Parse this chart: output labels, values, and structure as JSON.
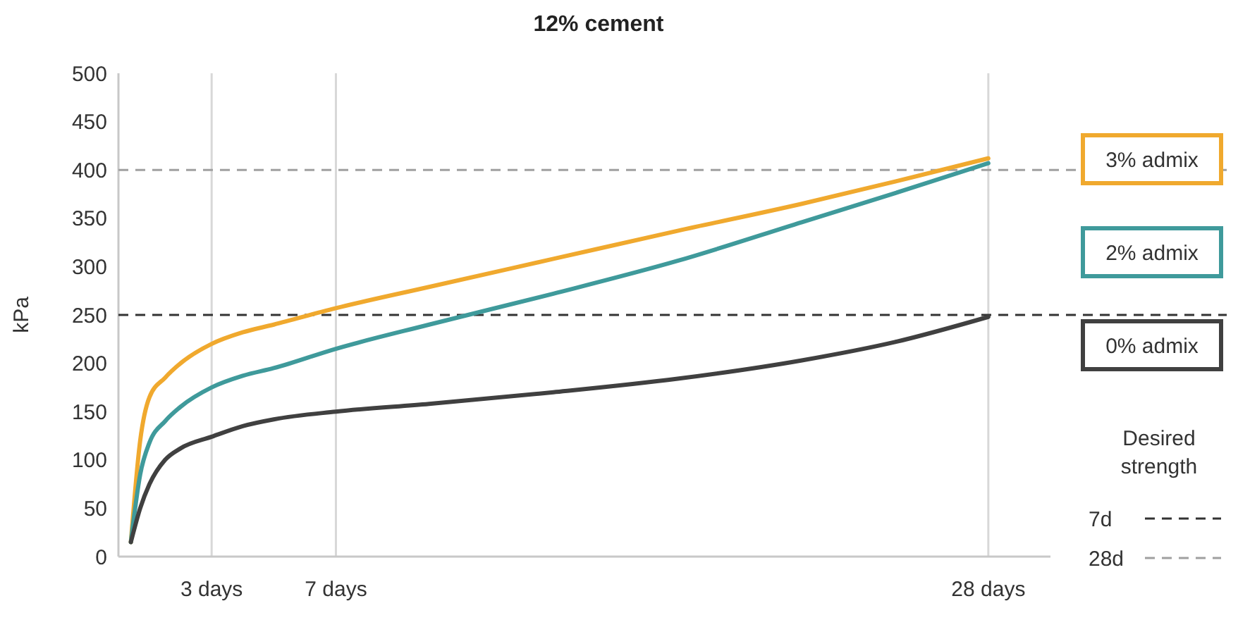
{
  "chart_data": {
    "type": "line",
    "title": "12% cement",
    "ylabel": "kPa",
    "xlim": [
      0,
      30
    ],
    "ylim": [
      0,
      500
    ],
    "xticks": [
      {
        "value": 3,
        "label": "3 days"
      },
      {
        "value": 7,
        "label": "7 days"
      },
      {
        "value": 28,
        "label": "28 days"
      }
    ],
    "yticks": [
      0,
      50,
      100,
      150,
      200,
      250,
      300,
      350,
      400,
      450,
      500
    ],
    "grid": "x",
    "legend": "right",
    "marker": "none",
    "line_style": "solid",
    "x": [
      0.4,
      0.7,
      1,
      1.5,
      2,
      3,
      4,
      5,
      7,
      10,
      14,
      18,
      22,
      25,
      28
    ],
    "series": [
      {
        "name": "3% admix",
        "color": "#f0a92e",
        "values": [
          15,
          120,
          165,
          185,
          200,
          220,
          232,
          240,
          257,
          279,
          308,
          337,
          365,
          388,
          412
        ]
      },
      {
        "name": "2% admix",
        "color": "#3f9a9b",
        "values": [
          15,
          85,
          118,
          140,
          155,
          175,
          187,
          195,
          215,
          240,
          272,
          306,
          346,
          376,
          407
        ]
      },
      {
        "name": "0% admix",
        "color": "#404040",
        "values": [
          15,
          50,
          75,
          100,
          112,
          124,
          135,
          142,
          150,
          158,
          170,
          184,
          203,
          222,
          248
        ]
      }
    ],
    "ref_lines": [
      {
        "axis": "y",
        "value": 250,
        "label": "7d",
        "color": "#333333",
        "line_style": "dashed"
      },
      {
        "axis": "y",
        "value": 400,
        "label": "28d",
        "color": "#a0a0a0",
        "line_style": "dashed"
      }
    ],
    "annotations": [
      "Desired strength"
    ]
  }
}
